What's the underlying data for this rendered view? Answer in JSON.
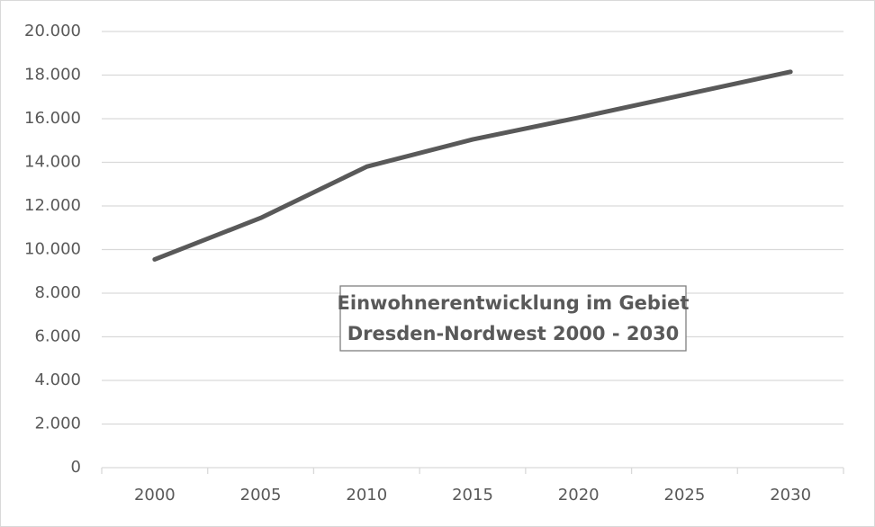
{
  "chart_data": {
    "type": "line",
    "title": [
      "Einwohnerentwicklung im Gebiet",
      "Dresden-Nordwest 2000 - 2030"
    ],
    "categories": [
      "2000",
      "2005",
      "2010",
      "2015",
      "2020",
      "2025",
      "2030"
    ],
    "values": [
      9550,
      11450,
      13800,
      15050,
      16050,
      17100,
      18150
    ],
    "color": "#595959",
    "ylim": [
      0,
      20000
    ],
    "yticks": [
      0,
      {
        "value": 2000,
        "label": "2.000"
      },
      {
        "value": 4000,
        "label": "4.000"
      },
      {
        "value": 6000,
        "label": "6.000"
      },
      {
        "value": 8000,
        "label": "8.000"
      },
      {
        "value": 10000,
        "label": "10.000"
      },
      {
        "value": 12000,
        "label": "12.000"
      },
      {
        "value": 14000,
        "label": "14.000"
      },
      {
        "value": 16000,
        "label": "16.000"
      },
      {
        "value": 18000,
        "label": "18.000"
      },
      {
        "value": 20000,
        "label": "20.000"
      }
    ],
    "grid": true
  }
}
